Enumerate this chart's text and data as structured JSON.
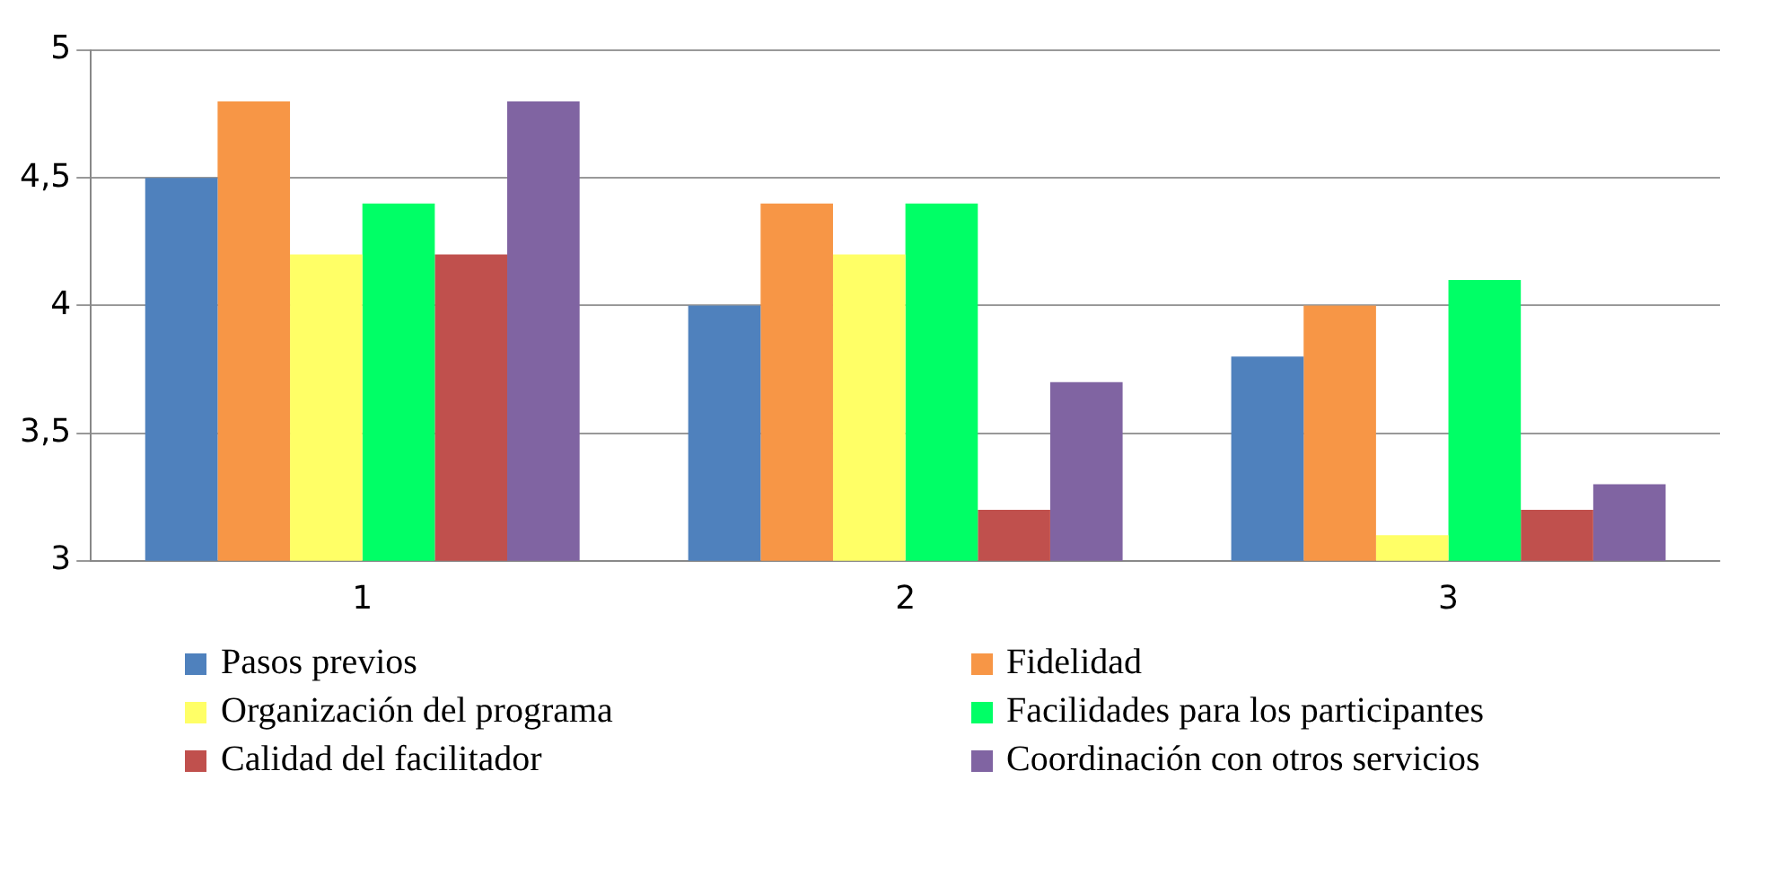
{
  "chart_data": {
    "type": "bar",
    "categories": [
      "1",
      "2",
      "3"
    ],
    "series": [
      {
        "name": "Pasos previos",
        "color": "#4f81bd",
        "values": [
          4.5,
          4.0,
          3.8
        ]
      },
      {
        "name": "Fidelidad",
        "color": "#f79646",
        "values": [
          4.8,
          4.4,
          4.0
        ]
      },
      {
        "name": "Organización del programa",
        "color": "#ffff66",
        "values": [
          4.2,
          4.2,
          3.1
        ]
      },
      {
        "name": "Facilidades para los participantes",
        "color": "#00ff66",
        "values": [
          4.4,
          4.4,
          4.1
        ]
      },
      {
        "name": "Calidad del facilitador",
        "color": "#c0504d",
        "values": [
          4.2,
          3.2,
          3.2
        ]
      },
      {
        "name": "Coordinación con otros servicios",
        "color": "#8064a2",
        "values": [
          4.8,
          3.7,
          3.3
        ]
      }
    ],
    "ylim": [
      3,
      5
    ],
    "yticks": [
      3,
      {
        "value": 3.5,
        "label": "3,5"
      },
      4,
      {
        "value": 4.5,
        "label": "4,5"
      },
      5
    ],
    "grid": "y",
    "legend": "bottom"
  }
}
